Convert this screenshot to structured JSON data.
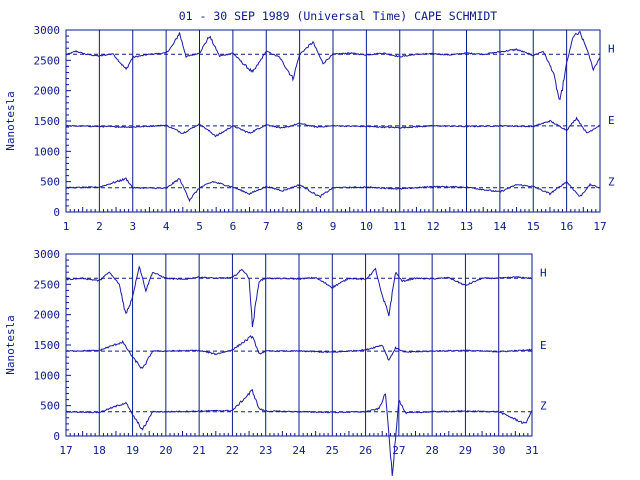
{
  "title": "01 - 30 SEP 1989 (Universal Time) CAPE SCHMIDT",
  "colors": {
    "ink": "#0a1a8c",
    "trace": "#1a1aa8"
  },
  "chart_data": [
    {
      "type": "line",
      "ylabel": "Nanotesla",
      "ylim": [
        0,
        3000
      ],
      "yticks": [
        0,
        500,
        1000,
        1500,
        2000,
        2500,
        3000
      ],
      "xlim": [
        1,
        17
      ],
      "xticks": [
        "1",
        "2",
        "3",
        "4",
        "5",
        "6",
        "7",
        "8",
        "9",
        "10",
        "11",
        "12",
        "13",
        "14",
        "15",
        "16",
        "17"
      ],
      "series": [
        {
          "name": "H",
          "baseline": 2600,
          "values": [
            {
              "x": 1,
              "y": 2590
            },
            {
              "x": 1.3,
              "y": 2650
            },
            {
              "x": 1.6,
              "y": 2600
            },
            {
              "x": 2,
              "y": 2570
            },
            {
              "x": 2.4,
              "y": 2610
            },
            {
              "x": 2.8,
              "y": 2350
            },
            {
              "x": 3,
              "y": 2550
            },
            {
              "x": 3.5,
              "y": 2600
            },
            {
              "x": 4,
              "y": 2620
            },
            {
              "x": 4.2,
              "y": 2750
            },
            {
              "x": 4.4,
              "y": 2950
            },
            {
              "x": 4.6,
              "y": 2560
            },
            {
              "x": 5,
              "y": 2620
            },
            {
              "x": 5.3,
              "y": 2900
            },
            {
              "x": 5.6,
              "y": 2570
            },
            {
              "x": 6,
              "y": 2620
            },
            {
              "x": 6.3,
              "y": 2450
            },
            {
              "x": 6.6,
              "y": 2300
            },
            {
              "x": 7,
              "y": 2650
            },
            {
              "x": 7.4,
              "y": 2550
            },
            {
              "x": 7.8,
              "y": 2200
            },
            {
              "x": 8,
              "y": 2600
            },
            {
              "x": 8.4,
              "y": 2800
            },
            {
              "x": 8.7,
              "y": 2450
            },
            {
              "x": 9,
              "y": 2600
            },
            {
              "x": 9.5,
              "y": 2620
            },
            {
              "x": 10,
              "y": 2590
            },
            {
              "x": 10.5,
              "y": 2620
            },
            {
              "x": 11,
              "y": 2560
            },
            {
              "x": 11.5,
              "y": 2600
            },
            {
              "x": 12,
              "y": 2610
            },
            {
              "x": 12.5,
              "y": 2590
            },
            {
              "x": 13,
              "y": 2620
            },
            {
              "x": 13.5,
              "y": 2600
            },
            {
              "x": 14,
              "y": 2640
            },
            {
              "x": 14.5,
              "y": 2680
            },
            {
              "x": 15,
              "y": 2580
            },
            {
              "x": 15.3,
              "y": 2650
            },
            {
              "x": 15.6,
              "y": 2300
            },
            {
              "x": 15.8,
              "y": 1800
            },
            {
              "x": 16,
              "y": 2450
            },
            {
              "x": 16.2,
              "y": 2900
            },
            {
              "x": 16.4,
              "y": 2950
            },
            {
              "x": 16.6,
              "y": 2700
            },
            {
              "x": 16.8,
              "y": 2350
            },
            {
              "x": 17,
              "y": 2550
            }
          ]
        },
        {
          "name": "E",
          "baseline": 1420,
          "values": [
            {
              "x": 1,
              "y": 1420
            },
            {
              "x": 2,
              "y": 1410
            },
            {
              "x": 3,
              "y": 1400
            },
            {
              "x": 4,
              "y": 1430
            },
            {
              "x": 4.5,
              "y": 1300
            },
            {
              "x": 5,
              "y": 1450
            },
            {
              "x": 5.5,
              "y": 1250
            },
            {
              "x": 6,
              "y": 1420
            },
            {
              "x": 6.5,
              "y": 1300
            },
            {
              "x": 7,
              "y": 1440
            },
            {
              "x": 7.5,
              "y": 1380
            },
            {
              "x": 8,
              "y": 1460
            },
            {
              "x": 8.5,
              "y": 1400
            },
            {
              "x": 9,
              "y": 1420
            },
            {
              "x": 10,
              "y": 1410
            },
            {
              "x": 11,
              "y": 1390
            },
            {
              "x": 12,
              "y": 1420
            },
            {
              "x": 13,
              "y": 1410
            },
            {
              "x": 14,
              "y": 1420
            },
            {
              "x": 15,
              "y": 1410
            },
            {
              "x": 15.5,
              "y": 1500
            },
            {
              "x": 16,
              "y": 1350
            },
            {
              "x": 16.3,
              "y": 1550
            },
            {
              "x": 16.6,
              "y": 1300
            },
            {
              "x": 17,
              "y": 1430
            }
          ]
        },
        {
          "name": "Z",
          "baseline": 400,
          "values": [
            {
              "x": 1,
              "y": 400
            },
            {
              "x": 2,
              "y": 410
            },
            {
              "x": 2.8,
              "y": 550
            },
            {
              "x": 3,
              "y": 400
            },
            {
              "x": 4,
              "y": 390
            },
            {
              "x": 4.4,
              "y": 550
            },
            {
              "x": 4.7,
              "y": 200
            },
            {
              "x": 5,
              "y": 400
            },
            {
              "x": 5.4,
              "y": 500
            },
            {
              "x": 6,
              "y": 410
            },
            {
              "x": 6.5,
              "y": 300
            },
            {
              "x": 7,
              "y": 420
            },
            {
              "x": 7.5,
              "y": 350
            },
            {
              "x": 8,
              "y": 450
            },
            {
              "x": 8.6,
              "y": 250
            },
            {
              "x": 9,
              "y": 400
            },
            {
              "x": 10,
              "y": 410
            },
            {
              "x": 11,
              "y": 380
            },
            {
              "x": 12,
              "y": 420
            },
            {
              "x": 13,
              "y": 410
            },
            {
              "x": 14,
              "y": 330
            },
            {
              "x": 14.5,
              "y": 450
            },
            {
              "x": 15,
              "y": 420
            },
            {
              "x": 15.5,
              "y": 300
            },
            {
              "x": 16,
              "y": 500
            },
            {
              "x": 16.4,
              "y": 250
            },
            {
              "x": 16.7,
              "y": 450
            },
            {
              "x": 17,
              "y": 400
            }
          ]
        }
      ]
    },
    {
      "type": "line",
      "ylabel": "Nanotesla",
      "ylim": [
        0,
        3000
      ],
      "yticks": [
        0,
        500,
        1000,
        1500,
        2000,
        2500,
        3000
      ],
      "xlim": [
        17,
        31
      ],
      "xticks": [
        "17",
        "18",
        "19",
        "20",
        "21",
        "22",
        "23",
        "24",
        "25",
        "26",
        "27",
        "28",
        "29",
        "30",
        "31"
      ],
      "series": [
        {
          "name": "H",
          "baseline": 2600,
          "values": [
            {
              "x": 17,
              "y": 2580
            },
            {
              "x": 17.5,
              "y": 2600
            },
            {
              "x": 18,
              "y": 2560
            },
            {
              "x": 18.3,
              "y": 2700
            },
            {
              "x": 18.6,
              "y": 2500
            },
            {
              "x": 18.8,
              "y": 2000
            },
            {
              "x": 19,
              "y": 2300
            },
            {
              "x": 19.2,
              "y": 2800
            },
            {
              "x": 19.4,
              "y": 2400
            },
            {
              "x": 19.6,
              "y": 2700
            },
            {
              "x": 20,
              "y": 2600
            },
            {
              "x": 20.5,
              "y": 2580
            },
            {
              "x": 21,
              "y": 2620
            },
            {
              "x": 21.5,
              "y": 2600
            },
            {
              "x": 22,
              "y": 2610
            },
            {
              "x": 22.3,
              "y": 2750
            },
            {
              "x": 22.5,
              "y": 2600
            },
            {
              "x": 22.6,
              "y": 1800
            },
            {
              "x": 22.8,
              "y": 2550
            },
            {
              "x": 23,
              "y": 2600
            },
            {
              "x": 24,
              "y": 2590
            },
            {
              "x": 24.5,
              "y": 2610
            },
            {
              "x": 25,
              "y": 2450
            },
            {
              "x": 25.5,
              "y": 2600
            },
            {
              "x": 26,
              "y": 2580
            },
            {
              "x": 26.3,
              "y": 2750
            },
            {
              "x": 26.5,
              "y": 2300
            },
            {
              "x": 26.7,
              "y": 2000
            },
            {
              "x": 26.9,
              "y": 2700
            },
            {
              "x": 27.1,
              "y": 2550
            },
            {
              "x": 27.5,
              "y": 2600
            },
            {
              "x": 28,
              "y": 2590
            },
            {
              "x": 28.5,
              "y": 2610
            },
            {
              "x": 29,
              "y": 2480
            },
            {
              "x": 29.5,
              "y": 2600
            },
            {
              "x": 30,
              "y": 2600
            },
            {
              "x": 30.5,
              "y": 2620
            },
            {
              "x": 31,
              "y": 2600
            }
          ]
        },
        {
          "name": "E",
          "baseline": 1400,
          "values": [
            {
              "x": 17,
              "y": 1400
            },
            {
              "x": 18,
              "y": 1410
            },
            {
              "x": 18.7,
              "y": 1550
            },
            {
              "x": 19,
              "y": 1300
            },
            {
              "x": 19.3,
              "y": 1100
            },
            {
              "x": 19.6,
              "y": 1400
            },
            {
              "x": 20,
              "y": 1400
            },
            {
              "x": 21,
              "y": 1410
            },
            {
              "x": 21.5,
              "y": 1350
            },
            {
              "x": 22,
              "y": 1420
            },
            {
              "x": 22.6,
              "y": 1650
            },
            {
              "x": 22.8,
              "y": 1350
            },
            {
              "x": 23,
              "y": 1400
            },
            {
              "x": 24,
              "y": 1400
            },
            {
              "x": 25,
              "y": 1380
            },
            {
              "x": 26,
              "y": 1420
            },
            {
              "x": 26.5,
              "y": 1500
            },
            {
              "x": 26.7,
              "y": 1250
            },
            {
              "x": 26.9,
              "y": 1450
            },
            {
              "x": 27.2,
              "y": 1380
            },
            {
              "x": 28,
              "y": 1400
            },
            {
              "x": 29,
              "y": 1410
            },
            {
              "x": 30,
              "y": 1390
            },
            {
              "x": 31,
              "y": 1420
            }
          ]
        },
        {
          "name": "Z",
          "baseline": 400,
          "values": [
            {
              "x": 17,
              "y": 400
            },
            {
              "x": 18,
              "y": 390
            },
            {
              "x": 18.8,
              "y": 550
            },
            {
              "x": 19,
              "y": 350
            },
            {
              "x": 19.3,
              "y": 100
            },
            {
              "x": 19.6,
              "y": 400
            },
            {
              "x": 20,
              "y": 400
            },
            {
              "x": 21,
              "y": 410
            },
            {
              "x": 22,
              "y": 420
            },
            {
              "x": 22.6,
              "y": 750
            },
            {
              "x": 22.8,
              "y": 450
            },
            {
              "x": 23,
              "y": 410
            },
            {
              "x": 24,
              "y": 400
            },
            {
              "x": 25,
              "y": 390
            },
            {
              "x": 26,
              "y": 400
            },
            {
              "x": 26.4,
              "y": 450
            },
            {
              "x": 26.6,
              "y": 700
            },
            {
              "x": 26.8,
              "y": -650
            },
            {
              "x": 27,
              "y": 600
            },
            {
              "x": 27.2,
              "y": 380
            },
            {
              "x": 28,
              "y": 400
            },
            {
              "x": 29,
              "y": 410
            },
            {
              "x": 30,
              "y": 400
            },
            {
              "x": 30.8,
              "y": 200
            },
            {
              "x": 31,
              "y": 420
            }
          ]
        }
      ]
    }
  ]
}
